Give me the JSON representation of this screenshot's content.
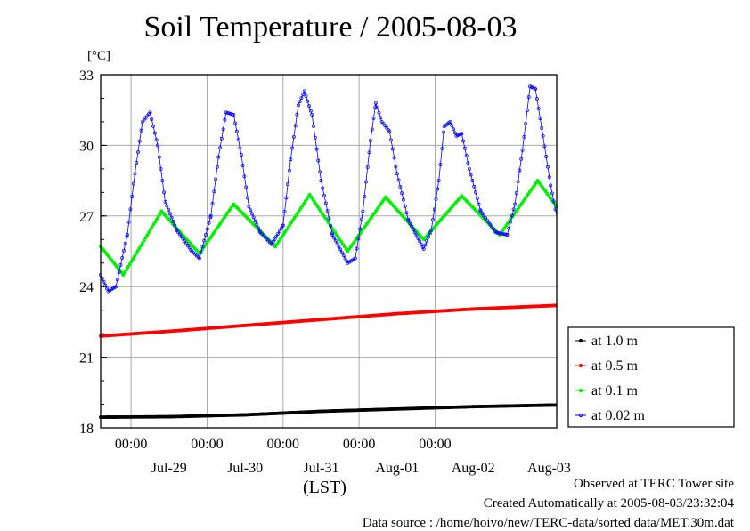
{
  "title": "Soil Temperature / 2005-08-03",
  "unit": "[°C]",
  "xlabel": "(LST)",
  "footer": {
    "line1": "Observed at TERC Tower site",
    "line2": "Created Automatically at 2005-08-03/23:32:04",
    "line3": "Data source : /home/hoivo/new/TERC-data/sorted  data/MET.30m.dat"
  },
  "chart_data": {
    "type": "line",
    "title": "Soil Temperature / 2005-08-03",
    "xlabel": "(LST)",
    "ylabel": "[°C]",
    "ylim": [
      18,
      33
    ],
    "yticks": [
      18,
      21,
      24,
      27,
      30,
      33
    ],
    "x_range_days": [
      -0.4,
      5.6
    ],
    "x_date_labels": [
      "Jul-29",
      "Jul-30",
      "Jul-31",
      "Aug-01",
      "Aug-02",
      "Aug-03"
    ],
    "x_time_labels": [
      "00:00",
      "00:00",
      "00:00",
      "00:00",
      "00:00"
    ],
    "grid": true,
    "legend_position": "right",
    "series": [
      {
        "name": "at 1.0 m",
        "color": "#000000",
        "marker": "filled",
        "points": [
          [
            -0.4,
            18.45
          ],
          [
            0.5,
            18.47
          ],
          [
            1.5,
            18.55
          ],
          [
            2.5,
            18.7
          ],
          [
            3.5,
            18.8
          ],
          [
            4.5,
            18.9
          ],
          [
            5.6,
            18.97
          ]
        ]
      },
      {
        "name": "at 0.5 m",
        "color": "#ff0000",
        "marker": "filled",
        "points": [
          [
            -0.4,
            21.9
          ],
          [
            0.5,
            22.1
          ],
          [
            1.5,
            22.35
          ],
          [
            2.5,
            22.6
          ],
          [
            3.5,
            22.85
          ],
          [
            4.5,
            23.05
          ],
          [
            5.6,
            23.2
          ]
        ]
      },
      {
        "name": "at 0.1 m",
        "color": "#00ee00",
        "marker": "filled",
        "points": [
          [
            -0.4,
            25.7
          ],
          [
            -0.1,
            24.5
          ],
          [
            0.4,
            27.2
          ],
          [
            0.9,
            25.4
          ],
          [
            1.35,
            27.5
          ],
          [
            1.9,
            25.7
          ],
          [
            2.35,
            27.9
          ],
          [
            2.85,
            25.5
          ],
          [
            3.35,
            27.8
          ],
          [
            3.85,
            26.0
          ],
          [
            4.35,
            27.85
          ],
          [
            4.85,
            26.2
          ],
          [
            5.35,
            28.5
          ],
          [
            5.6,
            27.4
          ]
        ]
      },
      {
        "name": "at 0.02 m",
        "color": "#0000ff",
        "marker": "open",
        "points": [
          [
            -0.4,
            24.5
          ],
          [
            -0.3,
            23.8
          ],
          [
            -0.2,
            24.0
          ],
          [
            -0.05,
            26.2
          ],
          [
            0.05,
            28.8
          ],
          [
            0.15,
            31.0
          ],
          [
            0.25,
            31.4
          ],
          [
            0.35,
            30.0
          ],
          [
            0.45,
            27.6
          ],
          [
            0.6,
            26.4
          ],
          [
            0.8,
            25.5
          ],
          [
            0.9,
            25.2
          ],
          [
            1.05,
            27.0
          ],
          [
            1.15,
            29.5
          ],
          [
            1.25,
            31.4
          ],
          [
            1.35,
            31.3
          ],
          [
            1.45,
            29.6
          ],
          [
            1.55,
            27.4
          ],
          [
            1.7,
            26.3
          ],
          [
            1.85,
            25.8
          ],
          [
            2.0,
            26.6
          ],
          [
            2.1,
            29.4
          ],
          [
            2.2,
            31.7
          ],
          [
            2.28,
            32.3
          ],
          [
            2.38,
            31.3
          ],
          [
            2.5,
            28.5
          ],
          [
            2.65,
            26.2
          ],
          [
            2.85,
            25.0
          ],
          [
            2.95,
            25.2
          ],
          [
            3.05,
            27.2
          ],
          [
            3.15,
            30.2
          ],
          [
            3.22,
            31.8
          ],
          [
            3.3,
            31.0
          ],
          [
            3.4,
            30.6
          ],
          [
            3.5,
            28.8
          ],
          [
            3.65,
            26.8
          ],
          [
            3.85,
            25.6
          ],
          [
            3.95,
            26.4
          ],
          [
            4.05,
            28.5
          ],
          [
            4.12,
            30.8
          ],
          [
            4.2,
            31.0
          ],
          [
            4.28,
            30.4
          ],
          [
            4.35,
            30.5
          ],
          [
            4.45,
            29.0
          ],
          [
            4.6,
            27.2
          ],
          [
            4.8,
            26.3
          ],
          [
            4.95,
            26.2
          ],
          [
            5.05,
            27.5
          ],
          [
            5.15,
            29.8
          ],
          [
            5.25,
            32.5
          ],
          [
            5.32,
            32.4
          ],
          [
            5.42,
            30.4
          ],
          [
            5.52,
            28.3
          ],
          [
            5.6,
            27.0
          ]
        ]
      }
    ]
  }
}
